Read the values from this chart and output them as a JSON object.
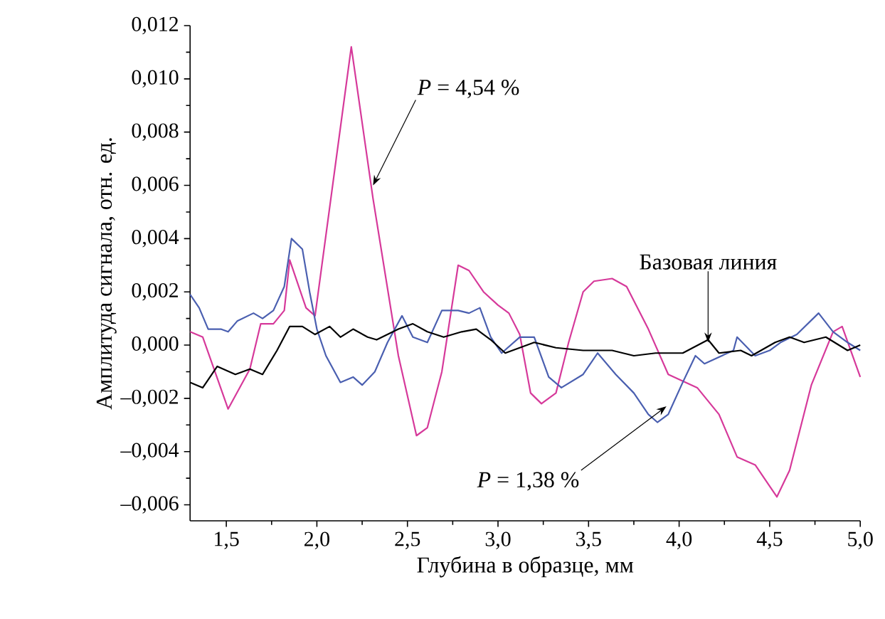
{
  "chart_data": {
    "type": "line",
    "xlabel": "Глубина в образце, мм",
    "ylabel": "Амплитуда сигнала, отн. ед.",
    "xlim": [
      1.3,
      5.0
    ],
    "ylim": [
      -0.0066,
      0.012
    ],
    "xticks": [
      {
        "value": 1.5,
        "label": "1,5"
      },
      {
        "value": 2.0,
        "label": "2,0"
      },
      {
        "value": 2.5,
        "label": "2,5"
      },
      {
        "value": 3.0,
        "label": "3,0"
      },
      {
        "value": 3.5,
        "label": "3,5"
      },
      {
        "value": 4.0,
        "label": "4,0"
      },
      {
        "value": 4.5,
        "label": "4,5"
      },
      {
        "value": 5.0,
        "label": "5,0"
      }
    ],
    "yticks": [
      {
        "value": -0.006,
        "label": "–0,006"
      },
      {
        "value": -0.004,
        "label": "–0,004"
      },
      {
        "value": -0.002,
        "label": "–0,002"
      },
      {
        "value": 0,
        "label": "0,000"
      },
      {
        "value": 0.002,
        "label": "0,002"
      },
      {
        "value": 0.004,
        "label": "0,004"
      },
      {
        "value": 0.006,
        "label": "0,006"
      },
      {
        "value": 0.008,
        "label": "0,008"
      },
      {
        "value": 0.01,
        "label": "0,010"
      },
      {
        "value": 0.012,
        "label": "0,012"
      }
    ],
    "grid": false,
    "marker": "none",
    "line_style": "solid",
    "series": [
      {
        "color": "#d6399a",
        "x": [
          1.3,
          1.37,
          1.51,
          1.63,
          1.69,
          1.76,
          1.82,
          1.85,
          1.94,
          1.99,
          2.19,
          2.31,
          2.45,
          2.55,
          2.61,
          2.69,
          2.78,
          2.84,
          2.92,
          3.0,
          3.06,
          3.12,
          3.18,
          3.24,
          3.32,
          3.39,
          3.47,
          3.53,
          3.63,
          3.71,
          3.83,
          3.94,
          4.1,
          4.22,
          4.32,
          4.42,
          4.54,
          4.61,
          4.73,
          4.85,
          4.9,
          5.0
        ],
        "values": [
          0.0005,
          0.0003,
          -0.0024,
          -0.0009,
          0.0008,
          0.0008,
          0.0013,
          0.0032,
          0.0014,
          0.0011,
          0.0112,
          0.0055,
          -0.0004,
          -0.0034,
          -0.0031,
          -0.001,
          0.003,
          0.0028,
          0.002,
          0.0015,
          0.0012,
          0.0004,
          -0.0018,
          -0.0022,
          -0.0018,
          0.0001,
          0.002,
          0.0024,
          0.0025,
          0.0022,
          0.0006,
          -0.0011,
          -0.0016,
          -0.0026,
          -0.0042,
          -0.0045,
          -0.0057,
          -0.0047,
          -0.0015,
          0.0005,
          0.0007,
          -0.0012
        ]
      },
      {
        "color": "#4a5fb0",
        "x": [
          1.3,
          1.35,
          1.4,
          1.47,
          1.51,
          1.56,
          1.65,
          1.7,
          1.76,
          1.82,
          1.86,
          1.92,
          1.96,
          2.0,
          2.05,
          2.13,
          2.2,
          2.25,
          2.32,
          2.39,
          2.47,
          2.53,
          2.61,
          2.69,
          2.78,
          2.84,
          2.9,
          2.96,
          3.02,
          3.12,
          3.2,
          3.28,
          3.35,
          3.47,
          3.55,
          3.65,
          3.75,
          3.83,
          3.88,
          3.94,
          4.02,
          4.09,
          4.14,
          4.3,
          4.32,
          4.42,
          4.5,
          4.56,
          4.65,
          4.77,
          4.85,
          4.93,
          5.0
        ],
        "values": [
          0.0019,
          0.0014,
          0.0006,
          0.0006,
          0.0005,
          0.0009,
          0.0012,
          0.001,
          0.0013,
          0.0022,
          0.004,
          0.0036,
          0.002,
          0.0006,
          -0.0004,
          -0.0014,
          -0.0012,
          -0.0015,
          -0.001,
          0.0001,
          0.0011,
          0.0003,
          0.0001,
          0.0013,
          0.0013,
          0.0012,
          0.0014,
          0.0003,
          -0.0003,
          0.0003,
          0.0003,
          -0.0012,
          -0.0016,
          -0.0011,
          -0.0003,
          -0.0011,
          -0.0018,
          -0.0026,
          -0.0029,
          -0.0026,
          -0.0014,
          -0.0004,
          -0.0007,
          -0.0002,
          0.0003,
          -0.0004,
          -0.0002,
          0.0001,
          0.0004,
          0.0012,
          0.0005,
          0.0001,
          -0.0002
        ]
      },
      {
        "color": "#000000",
        "x": [
          1.3,
          1.37,
          1.45,
          1.55,
          1.63,
          1.7,
          1.78,
          1.85,
          1.92,
          1.99,
          2.07,
          2.13,
          2.2,
          2.28,
          2.33,
          2.45,
          2.53,
          2.61,
          2.7,
          2.8,
          2.88,
          2.96,
          3.04,
          3.12,
          3.2,
          3.32,
          3.47,
          3.63,
          3.75,
          3.87,
          4.02,
          4.16,
          4.22,
          4.34,
          4.4,
          4.53,
          4.61,
          4.69,
          4.81,
          4.93,
          5.0
        ],
        "values": [
          -0.0014,
          -0.0016,
          -0.0008,
          -0.0011,
          -0.0009,
          -0.0011,
          -0.0002,
          0.0007,
          0.0007,
          0.0004,
          0.0007,
          0.0003,
          0.0006,
          0.0003,
          0.0002,
          0.0006,
          0.0008,
          0.0005,
          0.0003,
          0.0005,
          0.0006,
          0.0002,
          -0.0003,
          -0.0001,
          0.0001,
          -0.0001,
          -0.0002,
          -0.0002,
          -0.0004,
          -0.0003,
          -0.0003,
          0.0002,
          -0.0003,
          -0.0002,
          -0.0004,
          0.0001,
          0.0003,
          0.0001,
          0.0003,
          -0.0002,
          0.0
        ]
      }
    ],
    "annotations": [
      {
        "text": "*P* = 4,54 %",
        "x": 2.31,
        "y": 0.006
      },
      {
        "text": "*P* = 1,38 %",
        "x": 3.93,
        "y": -0.0023
      },
      {
        "text": "Базовая линия",
        "x": 4.16,
        "y": 0.0001
      }
    ]
  }
}
